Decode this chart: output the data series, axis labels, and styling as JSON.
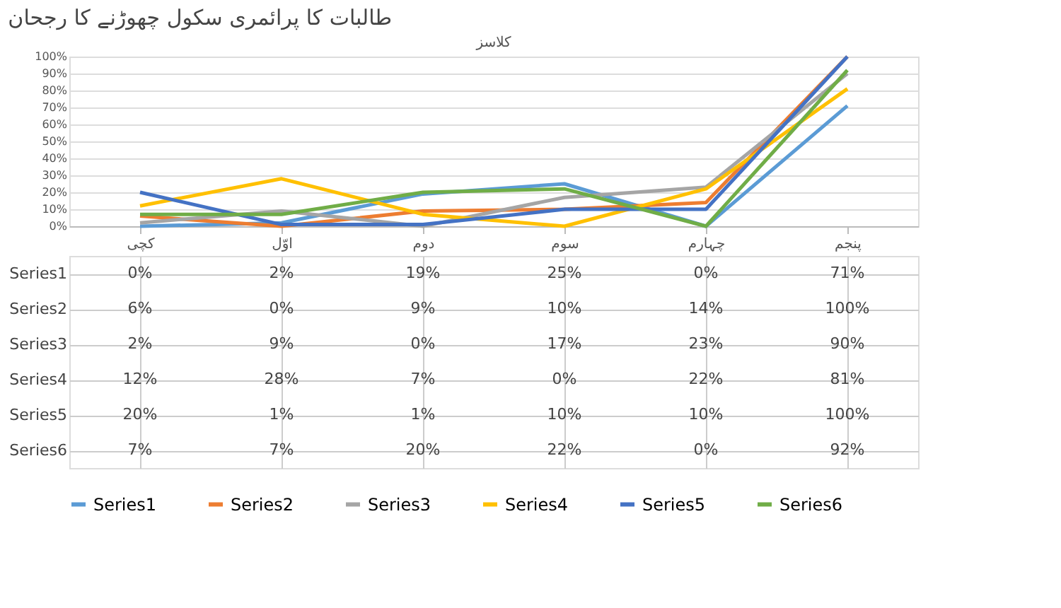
{
  "chart_data": {
    "type": "line",
    "title": "طالبات کا پرائمری سکول چھوڑنے کا رجحان",
    "xlabel": "کلاسز",
    "categories": [
      "کچی",
      "اوّل",
      "دوم",
      "سوم",
      "چہارم",
      "پنجم"
    ],
    "series": [
      {
        "name": "Series1",
        "color": "#5b9bd5",
        "values": [
          0,
          2,
          19,
          25,
          0,
          71
        ],
        "value_labels": [
          "0%",
          "2%",
          "19%",
          "25%",
          "0%",
          "71%"
        ]
      },
      {
        "name": "Series2",
        "color": "#ed7d31",
        "values": [
          6,
          0,
          9,
          10,
          14,
          100
        ],
        "value_labels": [
          "6%",
          "0%",
          "9%",
          "10%",
          "14%",
          "100%"
        ]
      },
      {
        "name": "Series3",
        "color": "#a5a5a5",
        "values": [
          2,
          9,
          0,
          17,
          23,
          90
        ],
        "value_labels": [
          "2%",
          "9%",
          "0%",
          "17%",
          "23%",
          "90%"
        ]
      },
      {
        "name": "Series4",
        "color": "#ffc000",
        "values": [
          12,
          28,
          7,
          0,
          22,
          81
        ],
        "value_labels": [
          "12%",
          "28%",
          "7%",
          "0%",
          "22%",
          "81%"
        ]
      },
      {
        "name": "Series5",
        "color": "#4472c4",
        "values": [
          20,
          1,
          1,
          10,
          10,
          100
        ],
        "value_labels": [
          "20%",
          "1%",
          "1%",
          "10%",
          "10%",
          "100%"
        ]
      },
      {
        "name": "Series6",
        "color": "#70ad47",
        "values": [
          7,
          7,
          20,
          22,
          0,
          92
        ],
        "value_labels": [
          "7%",
          "7%",
          "20%",
          "22%",
          "0%",
          "92%"
        ]
      }
    ],
    "ylim": [
      0,
      100
    ],
    "yticks": [
      {
        "value": 0,
        "label": "0%"
      },
      {
        "value": 10,
        "label": "10%"
      },
      {
        "value": 20,
        "label": "20%"
      },
      {
        "value": 30,
        "label": "30%"
      },
      {
        "value": 40,
        "label": "40%"
      },
      {
        "value": 50,
        "label": "50%"
      },
      {
        "value": 60,
        "label": "60%"
      },
      {
        "value": 70,
        "label": "70%"
      },
      {
        "value": 80,
        "label": "80%"
      },
      {
        "value": 90,
        "label": "90%"
      },
      {
        "value": 100,
        "label": "100%"
      }
    ],
    "grid": "y",
    "legend": "bottom",
    "marker": "none",
    "line_style": "solid"
  }
}
